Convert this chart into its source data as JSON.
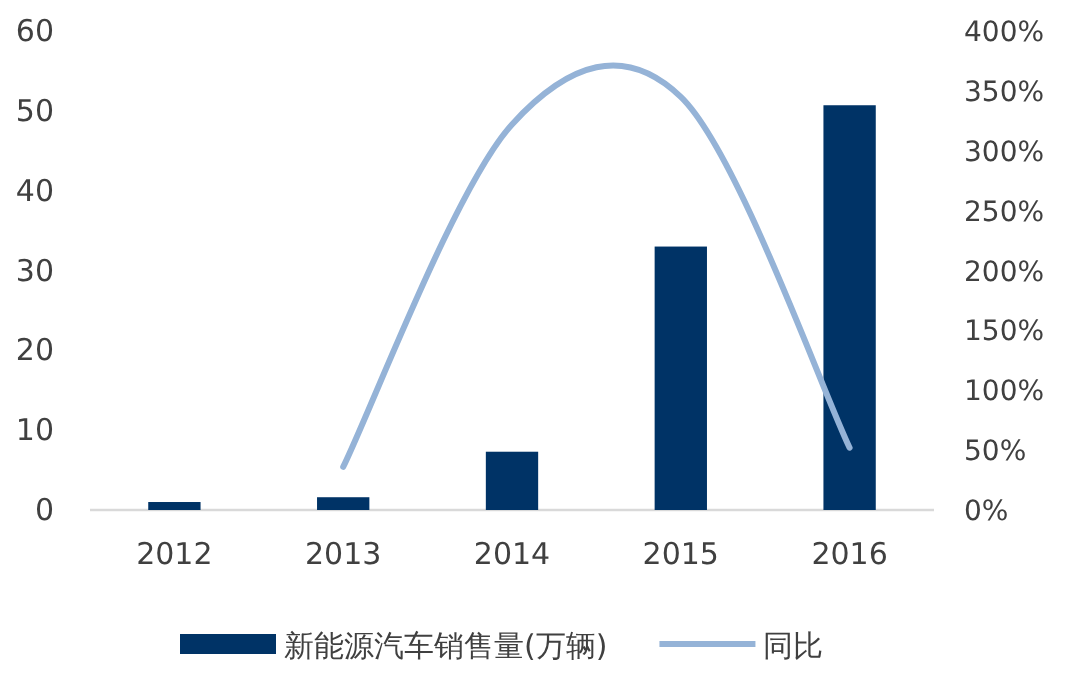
{
  "chart_data": {
    "type": "bar",
    "categories": [
      "2012",
      "2013",
      "2014",
      "2015",
      "2016"
    ],
    "series": [
      {
        "name": "新能源汽车销售量(万辆)",
        "color": "#003366",
        "values": [
          1.0,
          1.6,
          7.3,
          33.0,
          50.7
        ]
      },
      {
        "name": "同比",
        "type": "line",
        "axis": "y2",
        "color": "#95b3d7",
        "values": [
          null,
          36,
          322,
          345,
          52
        ]
      }
    ],
    "ylim": [
      0,
      60
    ],
    "yticks": [
      0,
      10,
      20,
      30,
      40,
      50,
      60
    ],
    "y2lim": [
      0,
      400
    ],
    "y2ticks": [
      {
        "value": 0,
        "label": "0%"
      },
      {
        "value": 50,
        "label": "50%"
      },
      {
        "value": 100,
        "label": "100%"
      },
      {
        "value": 150,
        "label": "150%"
      },
      {
        "value": 200,
        "label": "200%"
      },
      {
        "value": 250,
        "label": "250%"
      },
      {
        "value": 300,
        "label": "300%"
      },
      {
        "value": 350,
        "label": "350%"
      },
      {
        "value": 400,
        "label": "400%"
      }
    ],
    "grid": false,
    "legend": "bottom",
    "marker": "none",
    "line_style": "solid"
  }
}
